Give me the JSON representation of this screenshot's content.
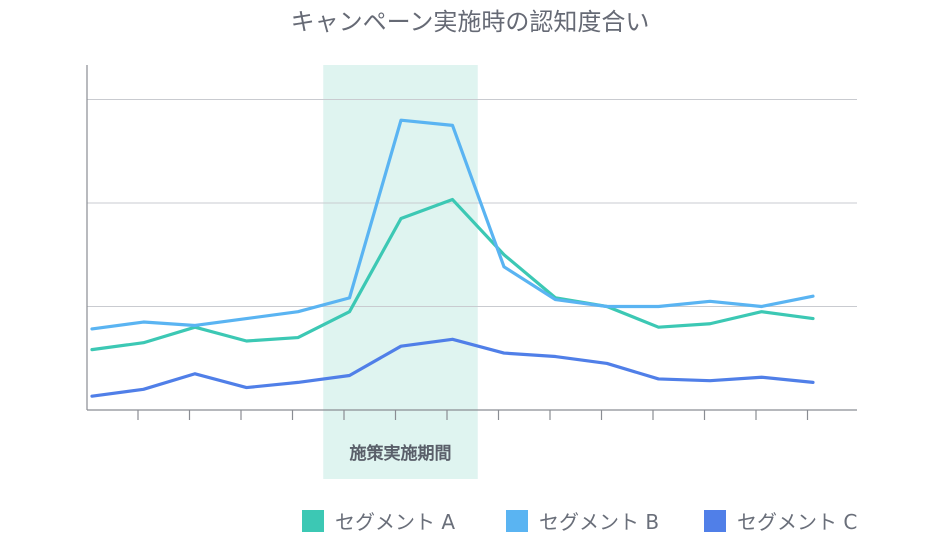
{
  "chart_data": {
    "type": "line",
    "title": "キャンペーン実施時の認知度合い",
    "xlabel": "",
    "ylabel": "",
    "x": [
      1,
      2,
      3,
      4,
      5,
      6,
      7,
      8,
      9,
      10,
      11,
      12,
      13,
      14,
      15
    ],
    "ylim": [
      0,
      100
    ],
    "y_gridlines": [
      30,
      60,
      90
    ],
    "grid": true,
    "legend_position": "bottom-right",
    "highlight": {
      "label": "施策実施期間",
      "x_start": 5.5,
      "x_end": 8.5,
      "color": "#dff4f0"
    },
    "series": [
      {
        "name": "セグメント A",
        "color": "#3cc8b4",
        "values": [
          17.5,
          19.5,
          24,
          20,
          21,
          28.5,
          55.5,
          61,
          45,
          32.5,
          30,
          24,
          25,
          28.5,
          26.5
        ]
      },
      {
        "name": "セグメント B",
        "color": "#5ab4f2",
        "values": [
          23.5,
          25.5,
          24.5,
          26.5,
          28.5,
          32.5,
          84,
          82.5,
          41.5,
          32,
          30,
          30,
          31.5,
          30,
          33
        ]
      },
      {
        "name": "セグメント C",
        "color": "#507fe8",
        "values": [
          4,
          6,
          10.5,
          6.5,
          8,
          10,
          18.5,
          20.5,
          16.5,
          15.5,
          13.5,
          9,
          8.5,
          9.5,
          8
        ]
      }
    ]
  }
}
